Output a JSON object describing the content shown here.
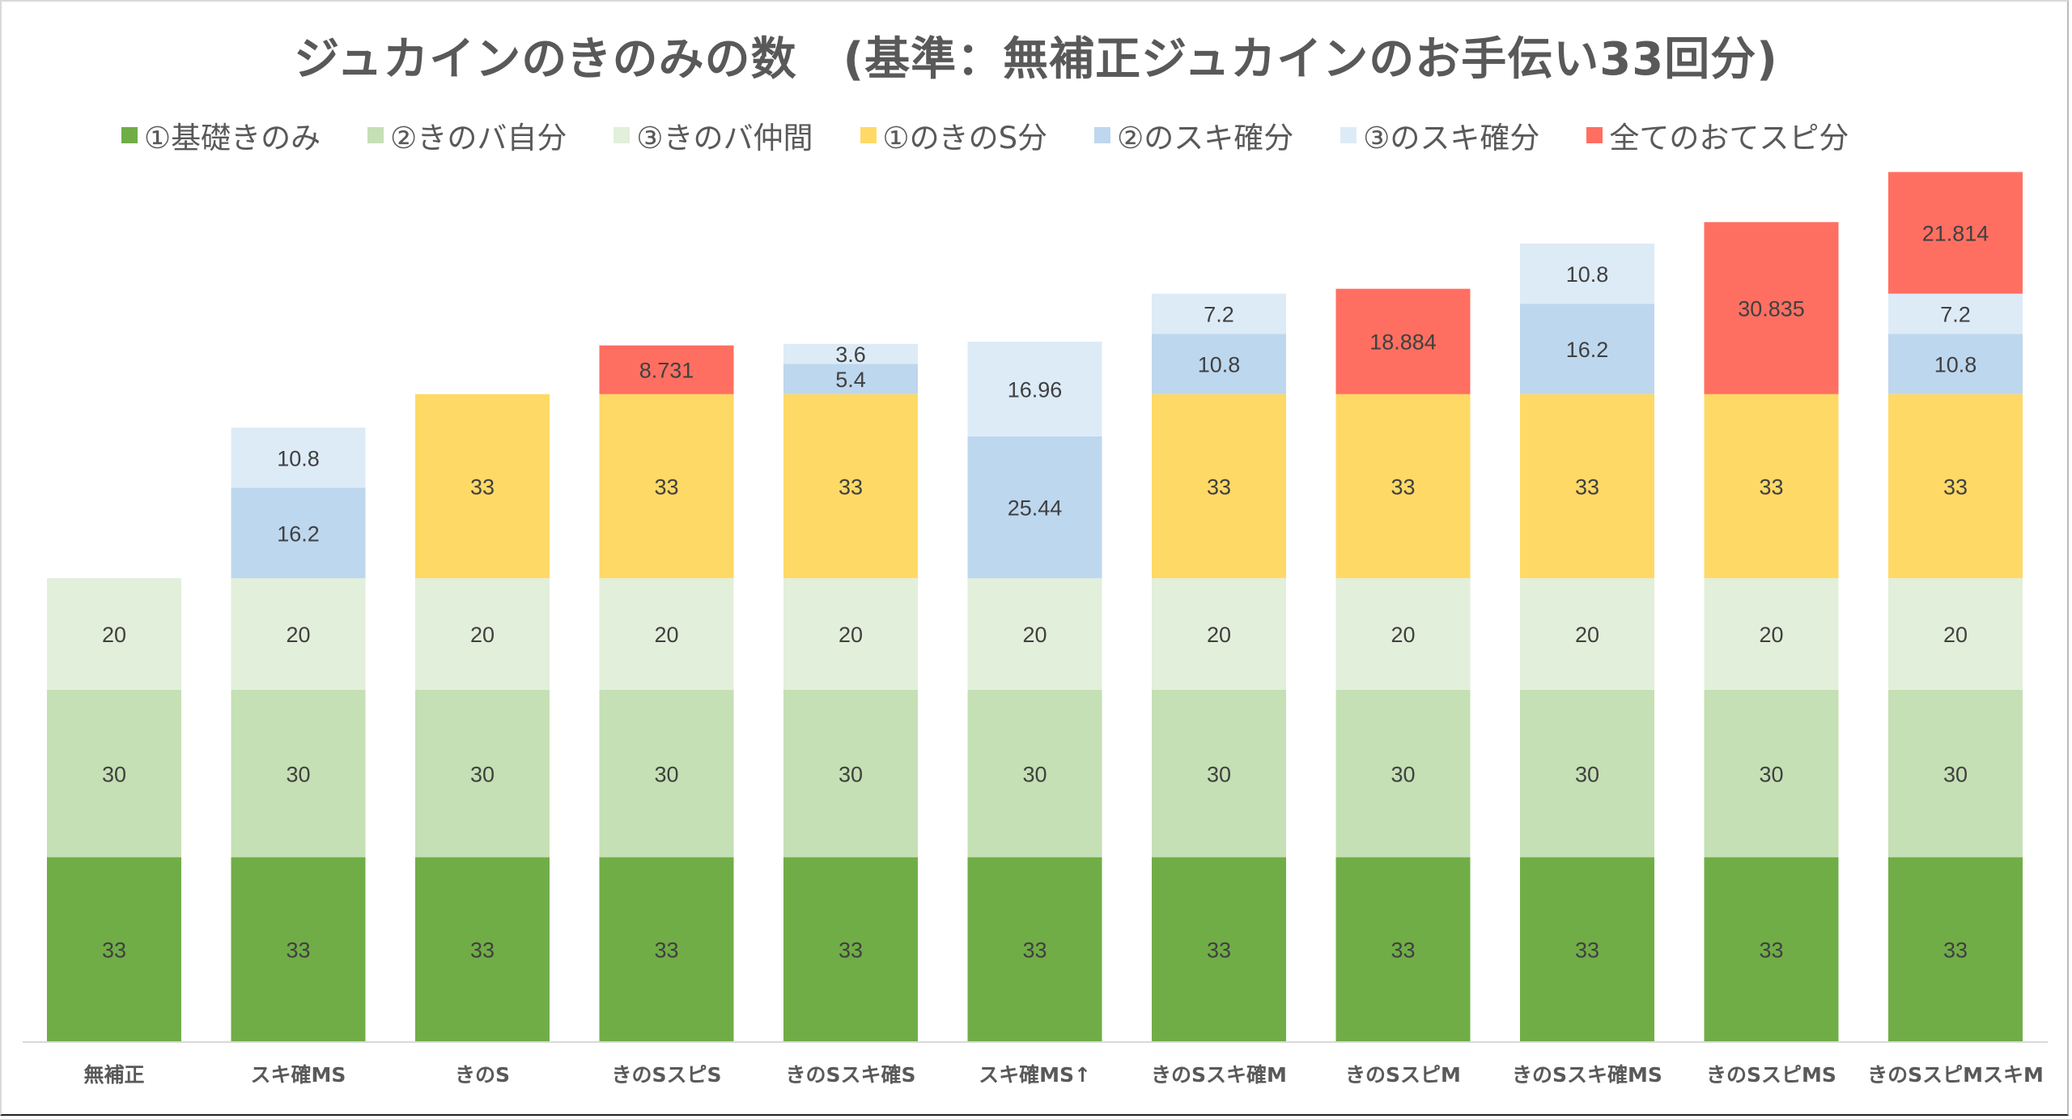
{
  "chart_data": {
    "type": "bar",
    "stacked": true,
    "title": "ジュカインのきのみの数　(基準：無補正ジュカインのお手伝い33回分)",
    "xlabel": "",
    "ylabel": "",
    "ylim": [
      0,
      160
    ],
    "grid": false,
    "legend_position": "top",
    "categories": [
      "無補正",
      "スキ確MS",
      "きのS",
      "きのSスピS",
      "きのSスキ確S",
      "スキ確MS↑",
      "きのSスキ確M",
      "きのSスピM",
      "きのSスキ確MS",
      "きのSスピMS",
      "きのSスピMスキM"
    ],
    "series": [
      {
        "name": "①基礎きのみ",
        "color": "#70ad47",
        "values": [
          33,
          33,
          33,
          33,
          33,
          33,
          33,
          33,
          33,
          33,
          33
        ]
      },
      {
        "name": "②きのバ自分",
        "color": "#c5e0b4",
        "values": [
          30,
          30,
          30,
          30,
          30,
          30,
          30,
          30,
          30,
          30,
          30
        ]
      },
      {
        "name": "③きのバ仲間",
        "color": "#e2efda",
        "values": [
          20,
          20,
          20,
          20,
          20,
          20,
          20,
          20,
          20,
          20,
          20
        ]
      },
      {
        "name": "①のきのS分",
        "color": "#ffd966",
        "values": [
          0,
          0,
          33,
          33,
          33,
          0,
          33,
          33,
          33,
          33,
          33
        ]
      },
      {
        "name": "②のスキ確分",
        "color": "#bdd7ee",
        "values": [
          0,
          16.2,
          0,
          0,
          5.4,
          25.44,
          10.8,
          0,
          16.2,
          0,
          10.8
        ]
      },
      {
        "name": "③のスキ確分",
        "color": "#ddebf7",
        "values": [
          0,
          10.8,
          0,
          0,
          3.6,
          16.96,
          7.2,
          0,
          10.8,
          0,
          7.2
        ]
      },
      {
        "name": "全てのおてスピ分",
        "color": "#ff6f61",
        "values": [
          0,
          0,
          0,
          8.731,
          0,
          0,
          0,
          18.884,
          0,
          30.835,
          21.814
        ]
      }
    ]
  }
}
